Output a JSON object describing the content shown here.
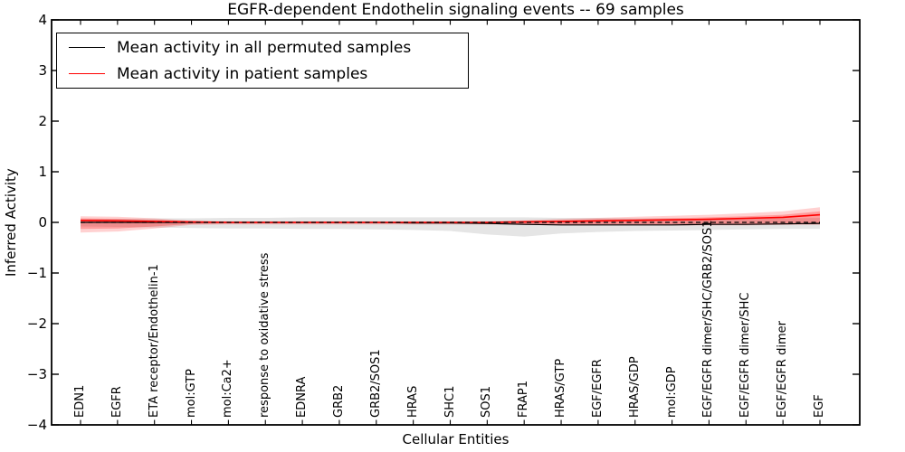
{
  "chart_data": {
    "type": "line",
    "title": "EGFR-dependent Endothelin signaling events -- 69 samples",
    "xlabel": "Cellular Entities",
    "ylabel": "Inferred Activity",
    "ylim": [
      -4,
      4
    ],
    "yticks": [
      4,
      3,
      2,
      1,
      0,
      -1,
      -2,
      -3,
      -4
    ],
    "grid": false,
    "legend_position": "upper left",
    "categories": [
      "EDN1",
      "EGFR",
      "ETA receptor/Endothelin-1",
      "mol:GTP",
      "mol:Ca2+",
      "response to oxidative stress",
      "EDNRA",
      "GRB2",
      "GRB2/SOS1",
      "HRAS",
      "SHC1",
      "SOS1",
      "FRAP1",
      "HRAS/GTP",
      "EGF/EGFR",
      "HRAS/GDP",
      "mol:GDP",
      "EGF/EGFR dimer/SHC/GRB2/SOS1",
      "EGF/EGFR dimer/SHC",
      "EGF/EGFR dimer",
      "EGF"
    ],
    "series": [
      {
        "name": "Mean activity in all permuted samples",
        "color": "#000000",
        "style": "solid",
        "values": [
          0,
          0,
          0,
          0,
          0,
          0,
          0,
          0,
          0,
          -0.01,
          -0.01,
          -0.02,
          -0.04,
          -0.05,
          -0.05,
          -0.05,
          -0.05,
          -0.04,
          -0.04,
          -0.03,
          -0.02
        ]
      },
      {
        "name": "Mean activity in patient samples",
        "color": "#ff0000",
        "style": "solid",
        "values": [
          0.04,
          0.03,
          0.02,
          0.01,
          0,
          0,
          0,
          0,
          0,
          0,
          0,
          0,
          0.01,
          0.02,
          0.03,
          0.04,
          0.05,
          0.06,
          0.08,
          0.1,
          0.15
        ]
      },
      {
        "name": "zero reference",
        "color": "#000000",
        "style": "dashed",
        "values": [
          0,
          0,
          0,
          0,
          0,
          0,
          0,
          0,
          0,
          0,
          0,
          0,
          0,
          0,
          0,
          0,
          0,
          0,
          0,
          0,
          0
        ]
      }
    ],
    "bands": [
      {
        "name": "permuted samples range",
        "color": "#000000",
        "opacity": 0.1,
        "upper": [
          0.06,
          0.07,
          0.08,
          0.08,
          0.09,
          0.09,
          0.1,
          0.1,
          0.1,
          0.1,
          0.1,
          0.1,
          0.1,
          0.09,
          0.09,
          0.08,
          0.08,
          0.07,
          0.07,
          0.08,
          0.09
        ],
        "lower": [
          -0.08,
          -0.09,
          -0.1,
          -0.11,
          -0.12,
          -0.12,
          -0.13,
          -0.13,
          -0.14,
          -0.15,
          -0.17,
          -0.24,
          -0.28,
          -0.22,
          -0.19,
          -0.17,
          -0.16,
          -0.15,
          -0.14,
          -0.13,
          -0.13
        ]
      },
      {
        "name": "patient samples outer range",
        "color": "#ff0000",
        "opacity": 0.18,
        "upper": [
          0.12,
          0.11,
          0.08,
          0.03,
          0.02,
          0.02,
          0.02,
          0.02,
          0.02,
          0.02,
          0.02,
          0.02,
          0.04,
          0.07,
          0.09,
          0.11,
          0.13,
          0.15,
          0.18,
          0.22,
          0.3
        ],
        "lower": [
          -0.2,
          -0.18,
          -0.12,
          -0.05,
          -0.04,
          -0.04,
          -0.04,
          -0.04,
          -0.04,
          -0.04,
          -0.04,
          -0.04,
          -0.05,
          -0.06,
          -0.06,
          -0.06,
          -0.06,
          -0.06,
          -0.06,
          -0.05,
          -0.05
        ]
      },
      {
        "name": "patient samples inner range",
        "color": "#ff0000",
        "opacity": 0.25,
        "upper": [
          0.08,
          0.07,
          0.05,
          0.02,
          0.01,
          0.01,
          0.01,
          0.01,
          0.01,
          0.01,
          0.01,
          0.01,
          0.03,
          0.04,
          0.06,
          0.07,
          0.08,
          0.1,
          0.12,
          0.15,
          0.22
        ],
        "lower": [
          -0.13,
          -0.12,
          -0.08,
          -0.03,
          -0.02,
          -0.02,
          -0.02,
          -0.02,
          -0.02,
          -0.02,
          -0.02,
          -0.03,
          -0.03,
          -0.04,
          -0.04,
          -0.04,
          -0.04,
          -0.04,
          -0.04,
          -0.04,
          -0.03
        ]
      }
    ],
    "legend": [
      {
        "label": "Mean activity in all permuted samples",
        "color": "#000000"
      },
      {
        "label": "Mean activity in patient samples",
        "color": "#ff0000"
      }
    ]
  }
}
